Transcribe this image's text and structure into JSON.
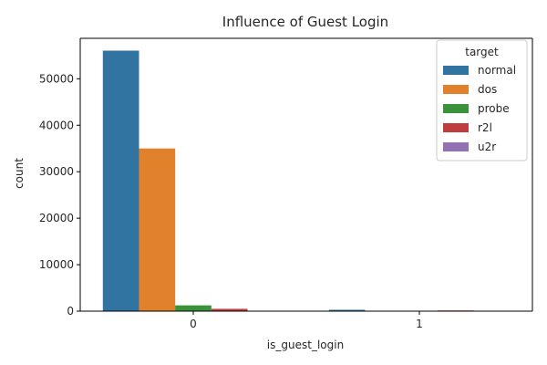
{
  "chart_data": {
    "type": "bar",
    "title": "Influence of Guest Login",
    "xlabel": "is_guest_login",
    "ylabel": "count",
    "categories": [
      "0",
      "1"
    ],
    "ylim": [
      0,
      58700
    ],
    "yticks": [
      0,
      10000,
      20000,
      30000,
      40000,
      50000
    ],
    "grid": false,
    "legend": {
      "title": "target",
      "placement": "top-right"
    },
    "series": [
      {
        "name": "normal",
        "color": "#3274a1",
        "values": [
          56050,
          300
        ]
      },
      {
        "name": "dos",
        "color": "#e1812c",
        "values": [
          35000,
          0
        ]
      },
      {
        "name": "probe",
        "color": "#3a923a",
        "values": [
          1250,
          0
        ]
      },
      {
        "name": "r2l",
        "color": "#c03d3e",
        "values": [
          500,
          150
        ]
      },
      {
        "name": "u2r",
        "color": "#9372b2",
        "values": [
          15,
          5
        ]
      }
    ]
  }
}
